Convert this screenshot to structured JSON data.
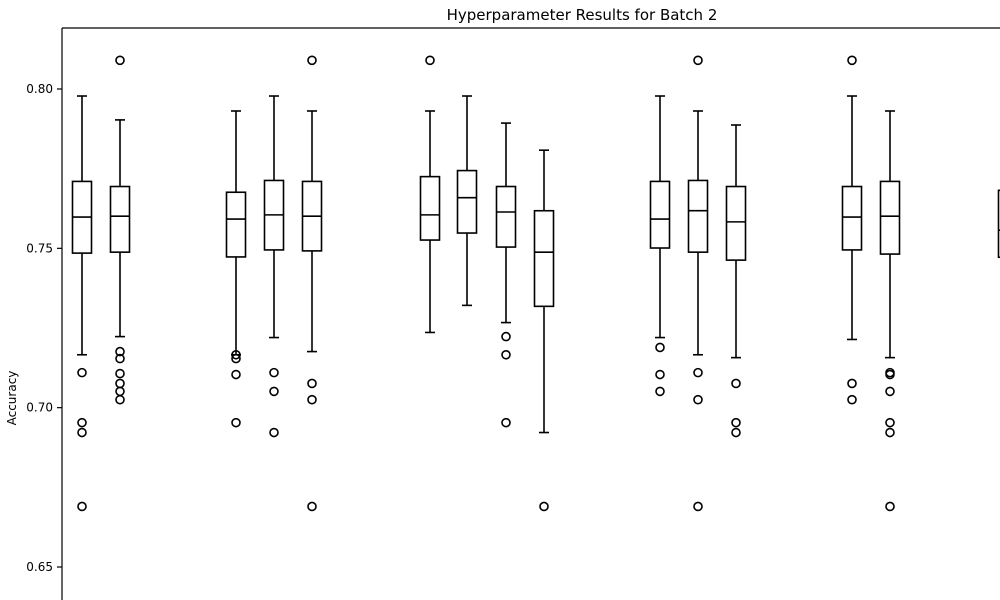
{
  "chart_data": {
    "type": "box",
    "title": "Hyperparameter Results for Batch 2",
    "xlabel": "",
    "ylabel": "Accuracy",
    "ylim": [
      0.64,
      0.82
    ],
    "yticks": [
      0.65,
      0.7,
      0.75,
      0.8
    ],
    "ytick_labels": [
      "0.65",
      "0.70",
      "0.75",
      "0.80"
    ],
    "grid": false,
    "boxes": [
      {
        "group": 1,
        "q1": 0.7485,
        "median": 0.7598,
        "q3": 0.771,
        "whisker_low": 0.7166,
        "whisker_high": 0.7978,
        "fliers": [
          0.711,
          0.6953,
          0.6922,
          0.669
        ]
      },
      {
        "group": 1,
        "q1": 0.7488,
        "median": 0.7601,
        "q3": 0.7694,
        "whisker_low": 0.7223,
        "whisker_high": 0.7903,
        "fliers": [
          0.809,
          0.7176,
          0.7154,
          0.7107,
          0.7076,
          0.7051,
          0.7025
        ]
      },
      {
        "group": 2,
        "q1": 0.7473,
        "median": 0.7592,
        "q3": 0.7676,
        "whisker_low": 0.7166,
        "whisker_high": 0.7931,
        "fliers": [
          0.7166,
          0.7154,
          0.7104,
          0.6953
        ]
      },
      {
        "group": 2,
        "q1": 0.7495,
        "median": 0.7605,
        "q3": 0.7713,
        "whisker_low": 0.722,
        "whisker_high": 0.7978,
        "fliers": [
          0.711,
          0.7051,
          0.6922
        ]
      },
      {
        "group": 2,
        "q1": 0.7492,
        "median": 0.7601,
        "q3": 0.771,
        "whisker_low": 0.7176,
        "whisker_high": 0.7931,
        "fliers": [
          0.809,
          0.7076,
          0.7025,
          0.669
        ]
      },
      {
        "group": 3,
        "q1": 0.7526,
        "median": 0.7605,
        "q3": 0.7725,
        "whisker_low": 0.7236,
        "whisker_high": 0.7931,
        "fliers": [
          0.809
        ]
      },
      {
        "group": 3,
        "q1": 0.7548,
        "median": 0.7659,
        "q3": 0.7744,
        "whisker_low": 0.7321,
        "whisker_high": 0.7978,
        "fliers": []
      },
      {
        "group": 3,
        "q1": 0.7504,
        "median": 0.7614,
        "q3": 0.7694,
        "whisker_low": 0.7267,
        "whisker_high": 0.7893,
        "fliers": [
          0.7223,
          0.7166,
          0.6953
        ]
      },
      {
        "group": 3,
        "q1": 0.7318,
        "median": 0.7488,
        "q3": 0.7618,
        "whisker_low": 0.6922,
        "whisker_high": 0.7808,
        "fliers": [
          0.669
        ]
      },
      {
        "group": 4,
        "q1": 0.7501,
        "median": 0.7592,
        "q3": 0.771,
        "whisker_low": 0.722,
        "whisker_high": 0.7978,
        "fliers": [
          0.7189,
          0.7104,
          0.7051
        ]
      },
      {
        "group": 4,
        "q1": 0.7488,
        "median": 0.7618,
        "q3": 0.7713,
        "whisker_low": 0.7166,
        "whisker_high": 0.7931,
        "fliers": [
          0.809,
          0.711,
          0.7025,
          0.669
        ]
      },
      {
        "group": 4,
        "q1": 0.7463,
        "median": 0.7583,
        "q3": 0.7694,
        "whisker_low": 0.7157,
        "whisker_high": 0.7887,
        "fliers": [
          0.7076,
          0.6953,
          0.6922
        ]
      },
      {
        "group": 5,
        "q1": 0.7495,
        "median": 0.7598,
        "q3": 0.7694,
        "whisker_low": 0.7214,
        "whisker_high": 0.7978,
        "fliers": [
          0.809,
          0.7076,
          0.7025
        ]
      },
      {
        "group": 5,
        "q1": 0.7482,
        "median": 0.7601,
        "q3": 0.771,
        "whisker_low": 0.7157,
        "whisker_high": 0.7931,
        "fliers": [
          0.711,
          0.7104,
          0.7051,
          0.6953,
          0.6922,
          0.669
        ]
      },
      {
        "group": 6,
        "q1": 0.7472,
        "median": 0.7557,
        "q3": 0.7682,
        "whisker_low": null,
        "whisker_high": null,
        "fliers": []
      }
    ]
  }
}
